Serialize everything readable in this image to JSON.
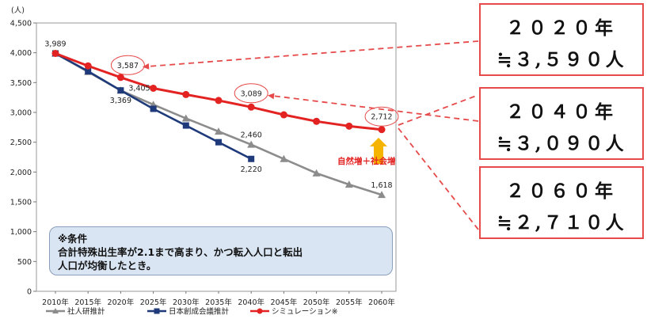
{
  "chart_data": {
    "type": "line",
    "unit_label": "(人)",
    "categories": [
      "2010年",
      "2015年",
      "2020年",
      "2025年",
      "2030年",
      "2035年",
      "2040年",
      "2045年",
      "2050年",
      "2055年",
      "2060年"
    ],
    "y_ticks": [
      "0",
      "500",
      "1,000",
      "1,500",
      "2,000",
      "2,500",
      "3,000",
      "3,500",
      "4,000",
      "4,500"
    ],
    "ylim": [
      0,
      4500
    ],
    "series": [
      {
        "name": "社人研推計",
        "color": "#8c8c8c",
        "marker": "triangle",
        "values": [
          3989,
          3680,
          3369,
          3130,
          2900,
          2680,
          2460,
          2220,
          1980,
          1790,
          1618
        ]
      },
      {
        "name": "日本創成会議推計",
        "color": "#1f3a7a",
        "marker": "square",
        "values": [
          3989,
          3690,
          3369,
          3060,
          2780,
          2500,
          2220,
          null,
          null,
          null,
          null
        ]
      },
      {
        "name": "シミュレーション※",
        "color": "#e32222",
        "marker": "circle",
        "values": [
          3989,
          3780,
          3587,
          3405,
          3300,
          3200,
          3089,
          2960,
          2850,
          2770,
          2712
        ]
      }
    ],
    "data_labels": [
      {
        "text": "3,989",
        "cat": 0,
        "value": 3989,
        "pos": "above"
      },
      {
        "text": "3,587",
        "cat": 2,
        "value": 3587,
        "pos": "center",
        "circled": true
      },
      {
        "text": "3,405",
        "cat": 3,
        "value": 3405,
        "pos": "left"
      },
      {
        "text": "3,369",
        "cat": 2,
        "value": 3369,
        "pos": "below"
      },
      {
        "text": "3,089",
        "cat": 6,
        "value": 3089,
        "pos": "above",
        "circled": true
      },
      {
        "text": "2,460",
        "cat": 6,
        "value": 2460,
        "pos": "above"
      },
      {
        "text": "2,220",
        "cat": 6,
        "value": 2220,
        "pos": "below"
      },
      {
        "text": "2,712",
        "cat": 10,
        "value": 2712,
        "pos": "above",
        "circled": true
      },
      {
        "text": "1,618",
        "cat": 10,
        "value": 1618,
        "pos": "above"
      }
    ],
    "arrow_label": "自然増＋社会増",
    "grid": false,
    "legend_position": "bottom"
  },
  "note": {
    "title": "※条件",
    "line1": "合計特殊出生率が2.1まで高まり、かつ転入人口と転出",
    "line2": "人口が均衡したとき。"
  },
  "callouts": [
    {
      "year": "２０２０年",
      "value": "≒３,５９０人"
    },
    {
      "year": "２０４０年",
      "value": "≒３,０９０人"
    },
    {
      "year": "２０６０年",
      "value": "≒２,７１０人"
    }
  ],
  "colors": {
    "callout_border": "#e64a4a",
    "arrow": "#f5b400",
    "note_bg": "#d9e5f3"
  }
}
